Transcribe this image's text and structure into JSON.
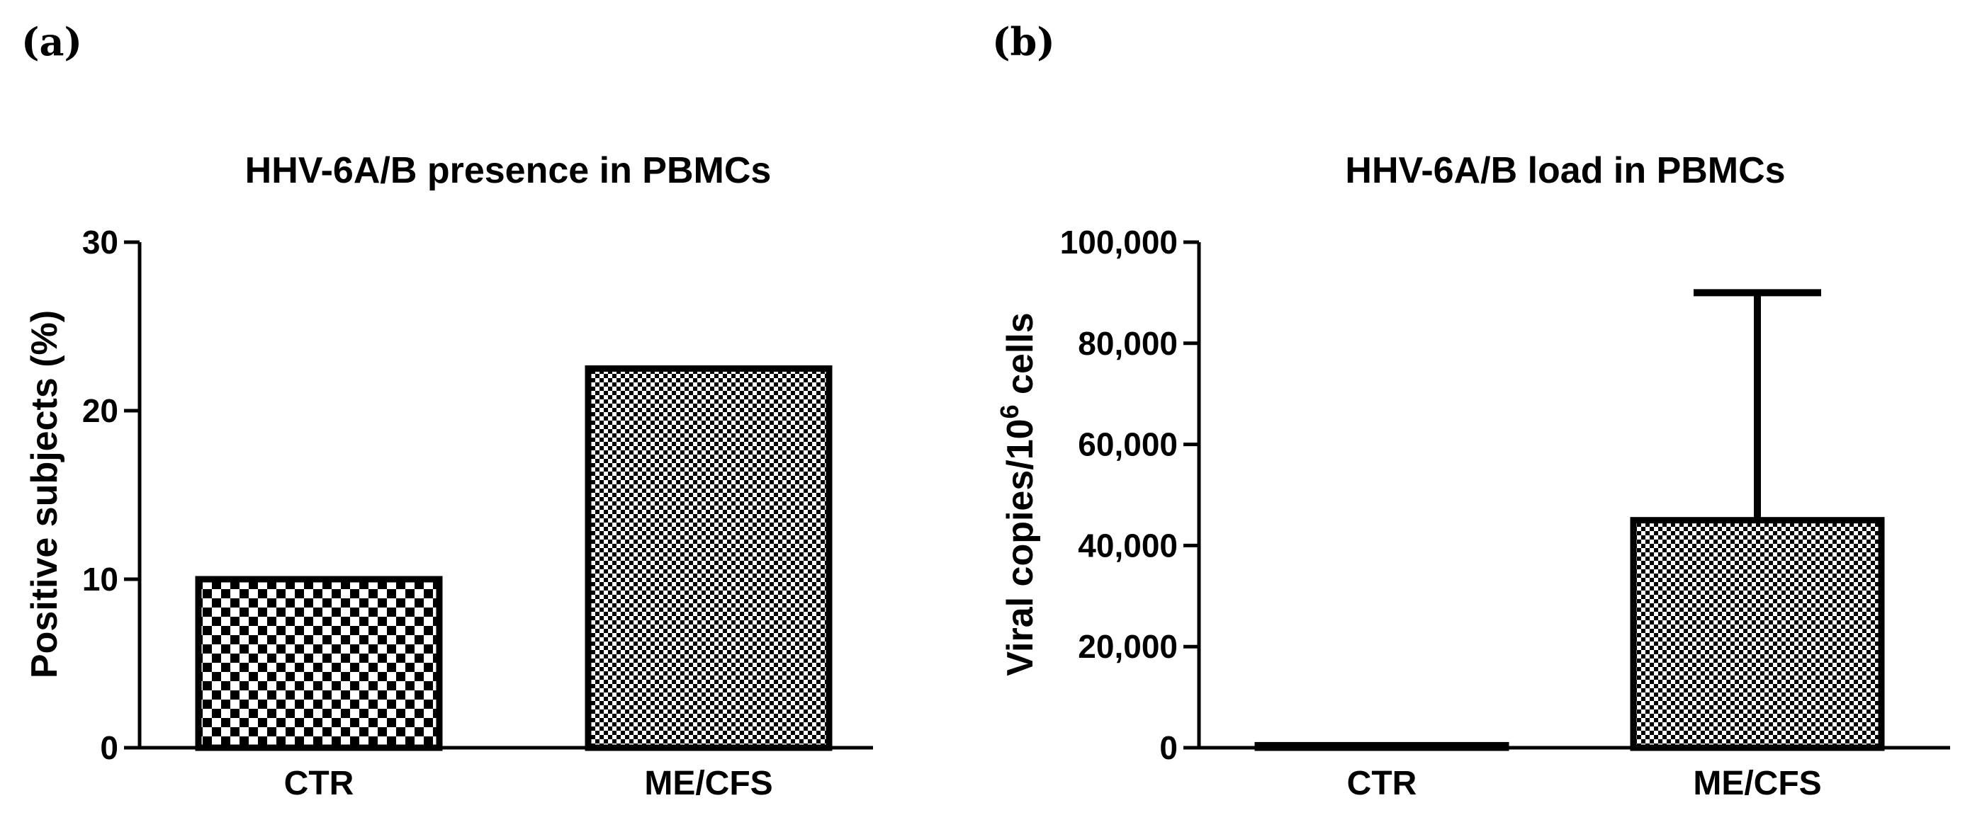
{
  "chart_data": [
    {
      "panel_label": "(a)",
      "type": "bar",
      "title": "HHV-6A/B presence in PBMCs",
      "xlabel": "",
      "ylabel": "Positive subjects (%)",
      "categories": [
        "CTR",
        "ME/CFS"
      ],
      "values": [
        10,
        22.5
      ],
      "error_upper": [
        null,
        null
      ],
      "ylim": [
        0,
        30
      ],
      "yticks": [
        0,
        10,
        20,
        30
      ],
      "ytick_labels": [
        "0",
        "10",
        "20",
        "30"
      ],
      "grid": false,
      "legend": "none"
    },
    {
      "panel_label": "(b)",
      "type": "bar",
      "title": "HHV-6A/B load in PBMCs",
      "xlabel": "",
      "ylabel": "Viral copies/10",
      "ylabel_sup": "6",
      "ylabel_suffix": " cells",
      "categories": [
        "CTR",
        "ME/CFS"
      ],
      "values": [
        500,
        45000
      ],
      "error_upper": [
        null,
        90000
      ],
      "ylim": [
        0,
        100000
      ],
      "yticks": [
        0,
        20000,
        40000,
        60000,
        80000,
        100000
      ],
      "ytick_labels": [
        "0",
        "20,000",
        "40,000",
        "60,000",
        "80,000",
        "100,000"
      ],
      "grid": false,
      "legend": "none"
    }
  ]
}
